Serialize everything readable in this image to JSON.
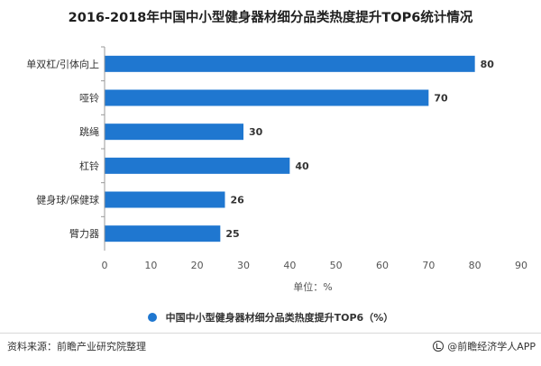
{
  "chart_data": {
    "type": "bar",
    "orientation": "horizontal",
    "title": "2016-2018年中国中小型健身器材细分品类热度提升TOP6统计情况",
    "categories": [
      "单双杠/引体向上",
      "哑铃",
      "跳绳",
      "杠铃",
      "健身球/保健球",
      "臂力器"
    ],
    "series": [
      {
        "name": "中国中小型健身器材细分品类热度提升TOP6（%）",
        "values": [
          80,
          70,
          30,
          40,
          26,
          25
        ]
      }
    ],
    "xlabel": "单位：%",
    "xlim": [
      0,
      90
    ],
    "xticks": [
      0,
      10,
      20,
      30,
      40,
      50,
      60,
      70,
      80,
      90
    ],
    "data_labels": true,
    "grid": false,
    "legend_position": "bottom",
    "bar_color": "#1f77d0"
  },
  "footer": {
    "source": "资料来源：前瞻产业研究院整理",
    "brand": "@前瞻经济学人APP"
  },
  "icons": {
    "legend_marker": "circle-marker-icon",
    "brand_logo": "brand-logo-icon"
  }
}
